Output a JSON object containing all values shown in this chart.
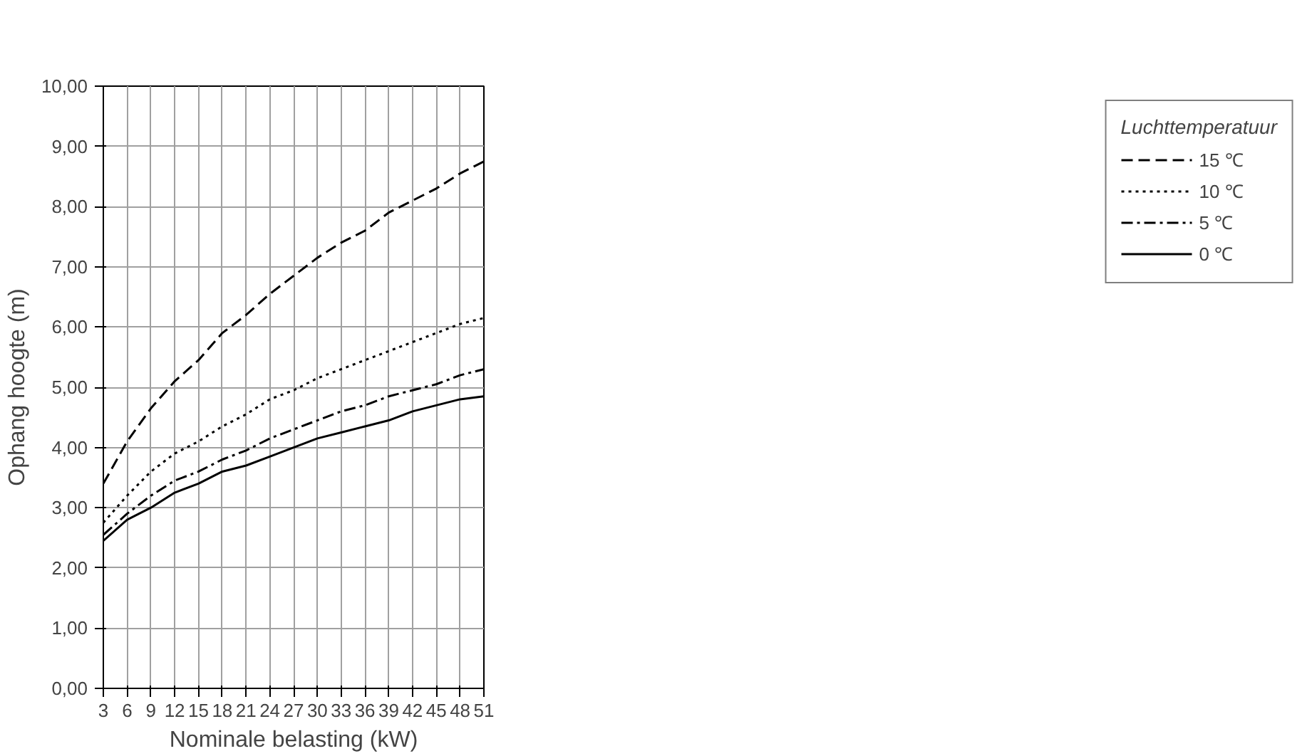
{
  "chart_data": {
    "type": "line",
    "xlabel": "Nominale belasting (kW)",
    "ylabel": "Ophang hoogte (m)",
    "legend_title": "Luchttemperatuur",
    "x": [
      3,
      6,
      9,
      12,
      15,
      18,
      21,
      24,
      27,
      30,
      33,
      36,
      39,
      42,
      45,
      48,
      51
    ],
    "series": [
      {
        "name": "15 ℃",
        "color": "#000000",
        "line_style": "dashed",
        "values": [
          3.4,
          4.1,
          4.65,
          5.1,
          5.45,
          5.9,
          6.2,
          6.55,
          6.85,
          7.15,
          7.4,
          7.6,
          7.9,
          8.1,
          8.3,
          8.55,
          8.75
        ]
      },
      {
        "name": "10 ℃",
        "color": "#000000",
        "line_style": "dotted",
        "values": [
          2.75,
          3.2,
          3.6,
          3.9,
          4.1,
          4.35,
          4.55,
          4.8,
          4.95,
          5.15,
          5.3,
          5.45,
          5.6,
          5.75,
          5.9,
          6.05,
          6.15
        ]
      },
      {
        "name": "5 ℃",
        "color": "#000000",
        "line_style": "dashdot",
        "values": [
          2.55,
          2.9,
          3.2,
          3.45,
          3.6,
          3.8,
          3.95,
          4.15,
          4.3,
          4.45,
          4.6,
          4.7,
          4.85,
          4.95,
          5.05,
          5.2,
          5.3
        ]
      },
      {
        "name": "0 ℃",
        "color": "#000000",
        "line_style": "solid",
        "values": [
          2.45,
          2.8,
          3.0,
          3.25,
          3.4,
          3.6,
          3.7,
          3.85,
          4.0,
          4.15,
          4.25,
          4.35,
          4.45,
          4.6,
          4.7,
          4.8,
          4.85
        ]
      }
    ],
    "xlim": [
      3,
      51
    ],
    "xticks": [
      3,
      6,
      9,
      12,
      15,
      18,
      21,
      24,
      27,
      30,
      33,
      36,
      39,
      42,
      45,
      48,
      51
    ],
    "ylim": [
      0,
      10
    ],
    "yticks": [
      {
        "value": 0,
        "label": "0,00"
      },
      {
        "value": 1,
        "label": "1,00"
      },
      {
        "value": 2,
        "label": "2,00"
      },
      {
        "value": 3,
        "label": "3,00"
      },
      {
        "value": 4,
        "label": "4,00"
      },
      {
        "value": 5,
        "label": "5,00"
      },
      {
        "value": 6,
        "label": "6,00"
      },
      {
        "value": 7,
        "label": "7,00"
      },
      {
        "value": 8,
        "label": "8,00"
      },
      {
        "value": 9,
        "label": "9,00"
      },
      {
        "value": 10,
        "label": "10,00"
      }
    ],
    "grid": true,
    "legend": "top right",
    "marker": "none"
  }
}
